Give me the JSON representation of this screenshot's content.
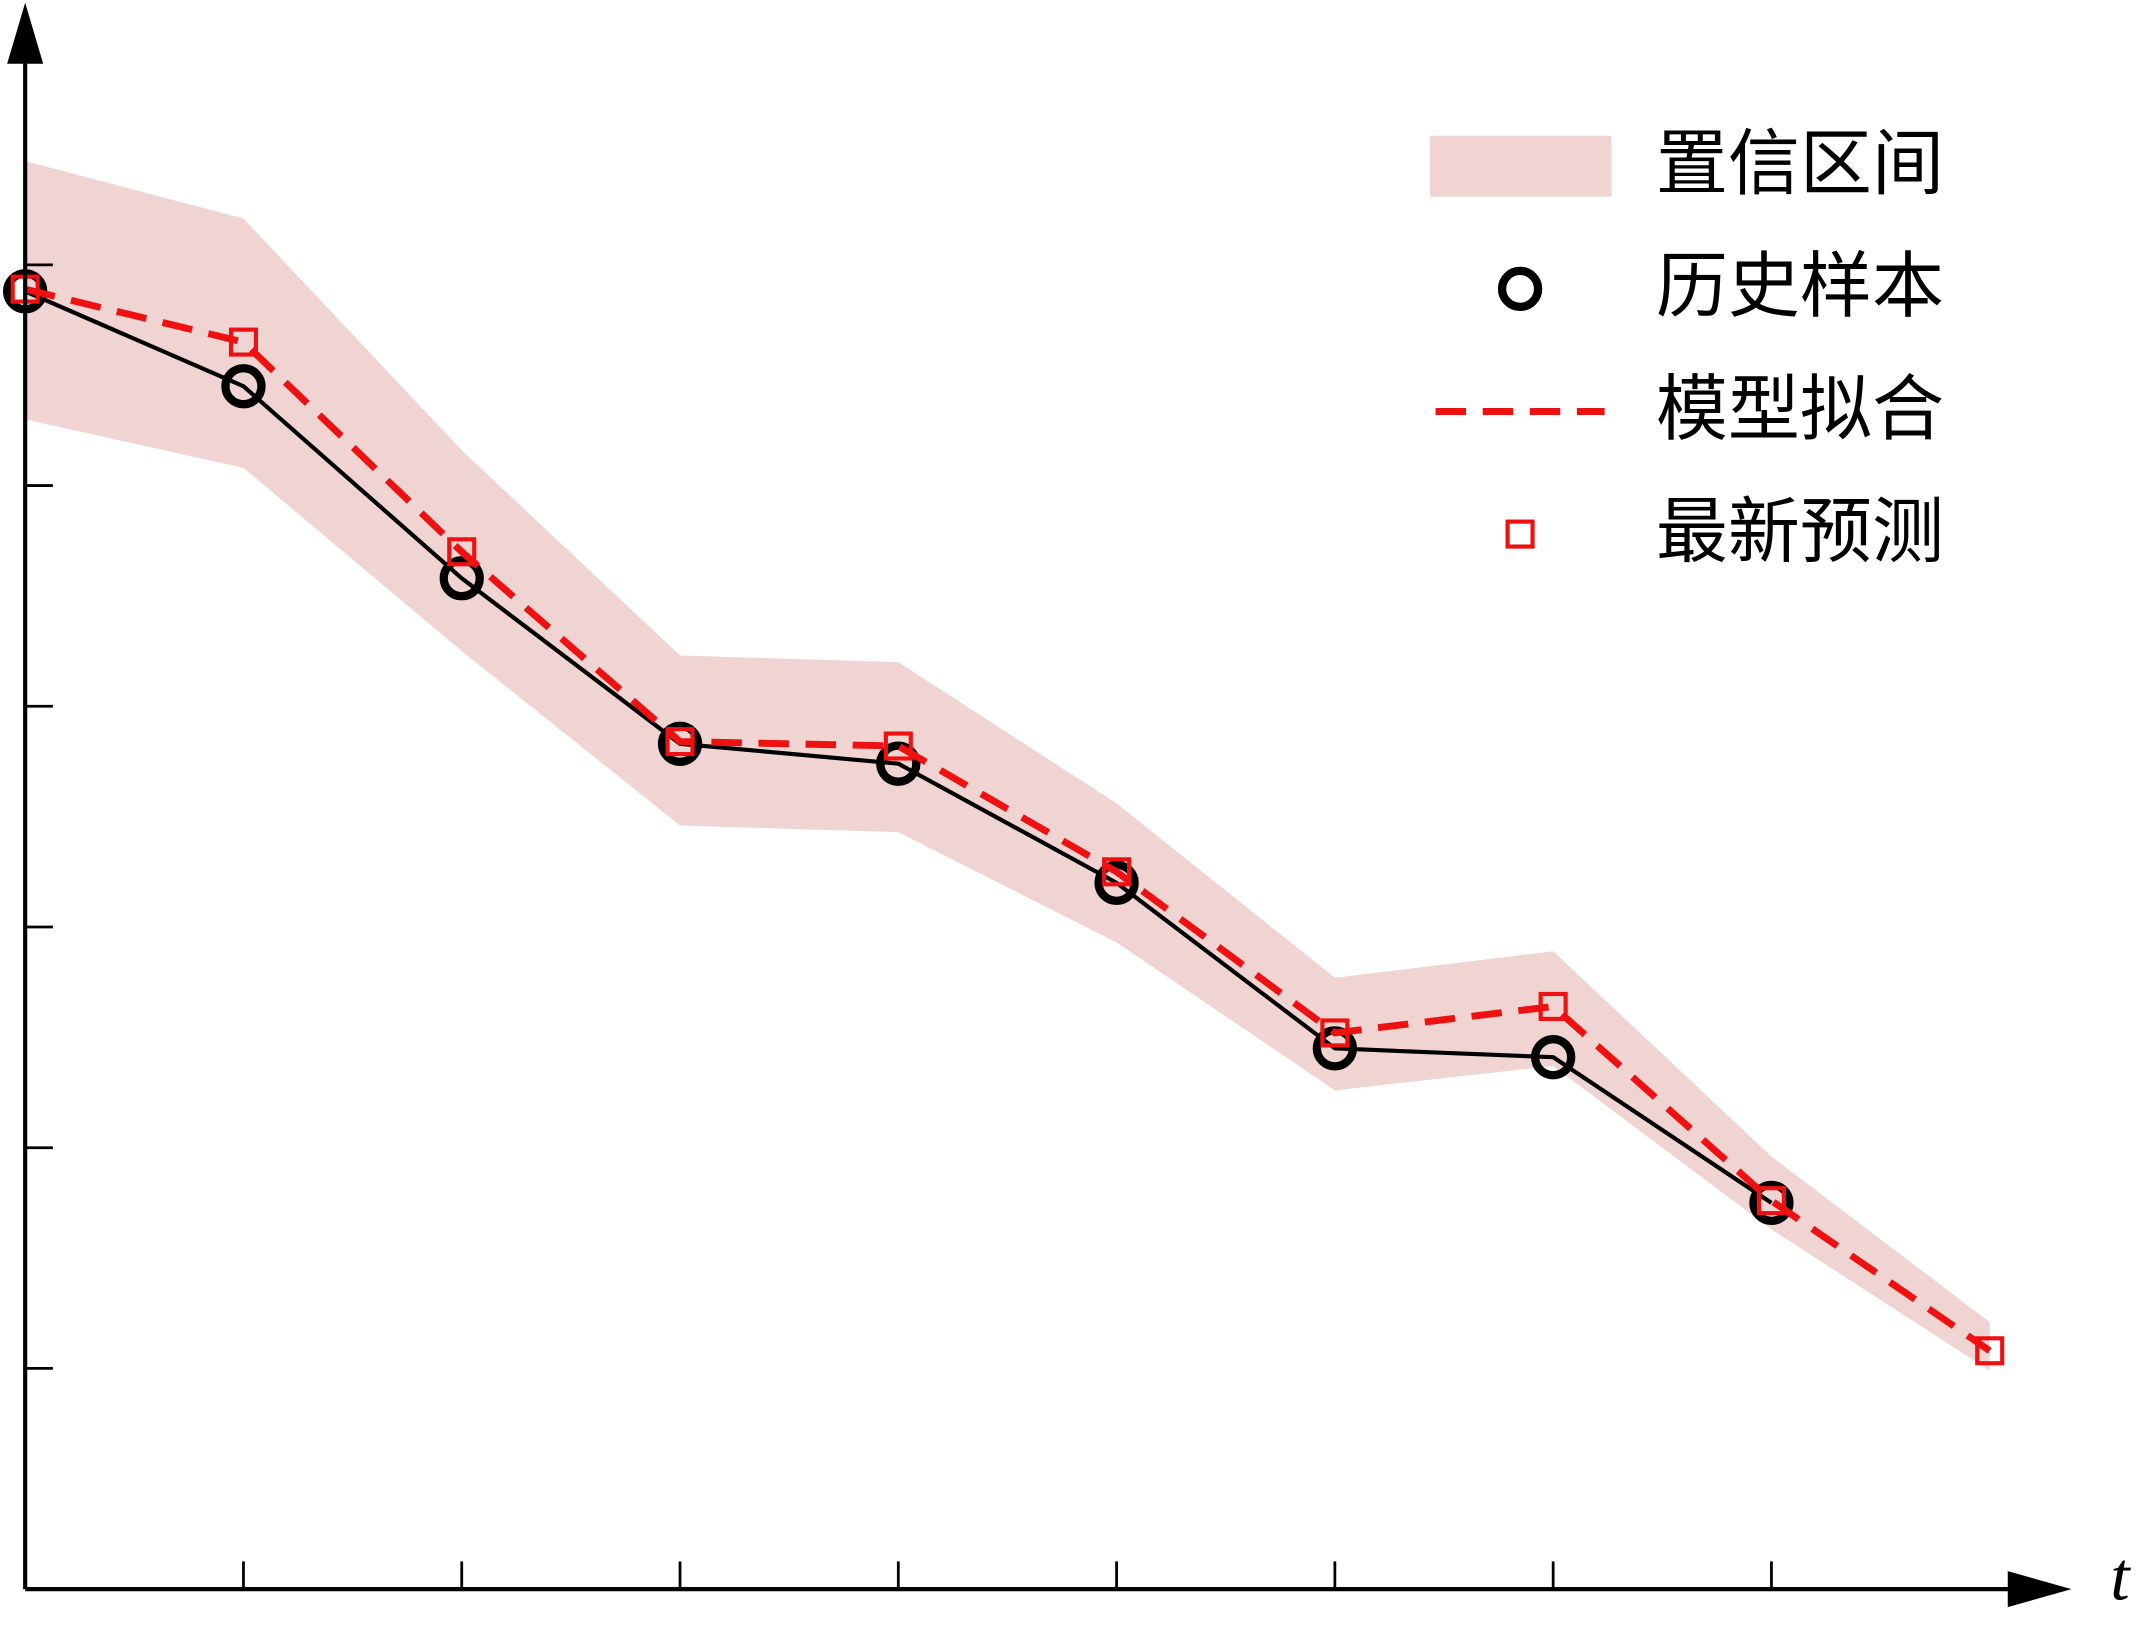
{
  "chart_data": {
    "type": "line",
    "x_label": "t",
    "xlim": [
      0,
      9.4
    ],
    "ylim": [
      0,
      7.2
    ],
    "xticks": [
      1,
      2,
      3,
      4,
      5,
      6,
      7,
      8
    ],
    "yticks": [
      1,
      2,
      3,
      4,
      5,
      6
    ],
    "legend": "top-right",
    "series": [
      {
        "name": "置信区间",
        "kind": "band",
        "color": "#f0d4d2",
        "x": [
          0,
          1,
          2,
          3,
          4,
          5,
          6,
          7,
          8,
          9
        ],
        "upper": [
          6.47,
          6.21,
          5.16,
          4.23,
          4.2,
          3.56,
          2.77,
          2.89,
          1.96,
          1.21
        ],
        "lower": [
          5.3,
          5.08,
          4.25,
          3.46,
          3.43,
          2.93,
          2.26,
          2.37,
          1.63,
          0.99
        ]
      },
      {
        "name": "历史样本",
        "kind": "circles",
        "color": "#000000",
        "x": [
          0,
          1,
          2,
          3,
          4,
          5,
          6,
          7,
          8
        ],
        "values": [
          5.88,
          5.45,
          4.58,
          3.83,
          3.74,
          3.2,
          2.45,
          2.41,
          1.75
        ]
      },
      {
        "name": "模型拟合",
        "kind": "dashed",
        "color": "#ee1111",
        "x": [
          0,
          1,
          2,
          3,
          4,
          5,
          6,
          7,
          8,
          9
        ],
        "values": [
          5.89,
          5.65,
          4.7,
          3.84,
          3.82,
          3.25,
          2.52,
          2.64,
          1.76,
          1.08
        ]
      },
      {
        "name": "最新预测",
        "kind": "squares",
        "color": "#ee1111",
        "x": [
          0,
          1,
          2,
          3,
          4,
          5,
          6,
          7,
          8,
          9
        ],
        "values": [
          5.89,
          5.65,
          4.7,
          3.84,
          3.82,
          3.25,
          2.52,
          2.64,
          1.76,
          1.08
        ]
      }
    ]
  }
}
